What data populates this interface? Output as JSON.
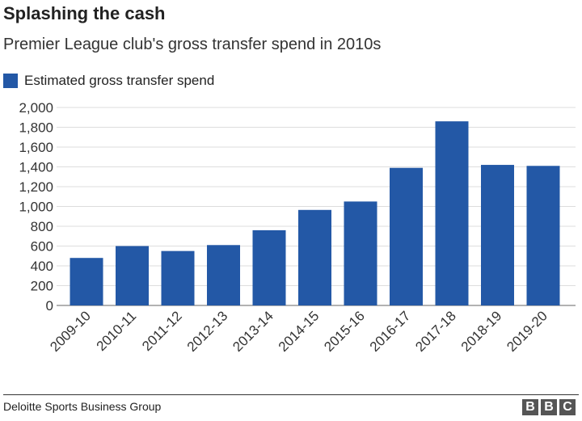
{
  "chart_data": {
    "type": "bar",
    "title": "Splashing the cash",
    "subtitle": "Premier League club's gross transfer spend in 2010s",
    "legend": [
      "Estimated gross transfer spend"
    ],
    "legend_placement": "top-left",
    "categories": [
      "2009-10",
      "2010-11",
      "2011-12",
      "2012-13",
      "2013-14",
      "2014-15",
      "2015-16",
      "2016-17",
      "2017-18",
      "2018-19",
      "2019-20"
    ],
    "series": [
      {
        "name": "Estimated gross transfer spend",
        "values": [
          480,
          600,
          550,
          610,
          760,
          965,
          1050,
          1390,
          1860,
          1420,
          1410
        ]
      }
    ],
    "yticks": [
      "0",
      "200",
      "400",
      "600",
      "800",
      "1,000",
      "1,200",
      "1,400",
      "1,600",
      "1,800",
      "2,000"
    ],
    "ylim": [
      0,
      2000
    ],
    "xlabel": "",
    "ylabel": "",
    "grid": true,
    "color": "#2358a6"
  },
  "footer": {
    "source": "Deloitte Sports Business Group",
    "logo": "BBC"
  }
}
